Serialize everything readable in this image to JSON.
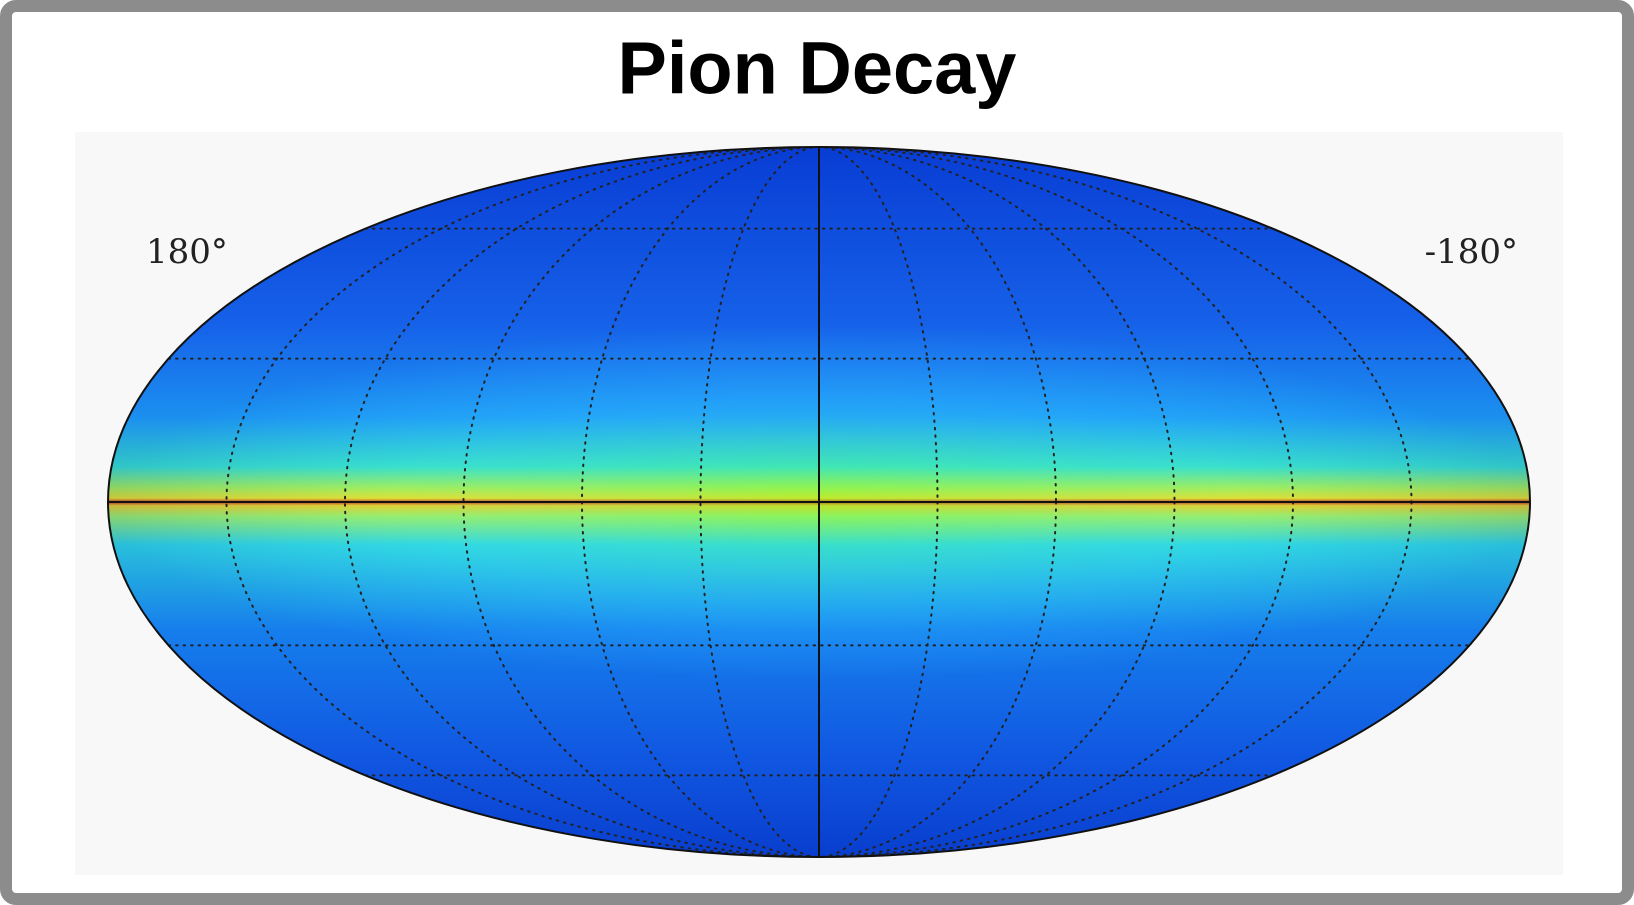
{
  "title": "Pion Decay",
  "map": {
    "left_label": "180°",
    "right_label": "-180°"
  }
}
